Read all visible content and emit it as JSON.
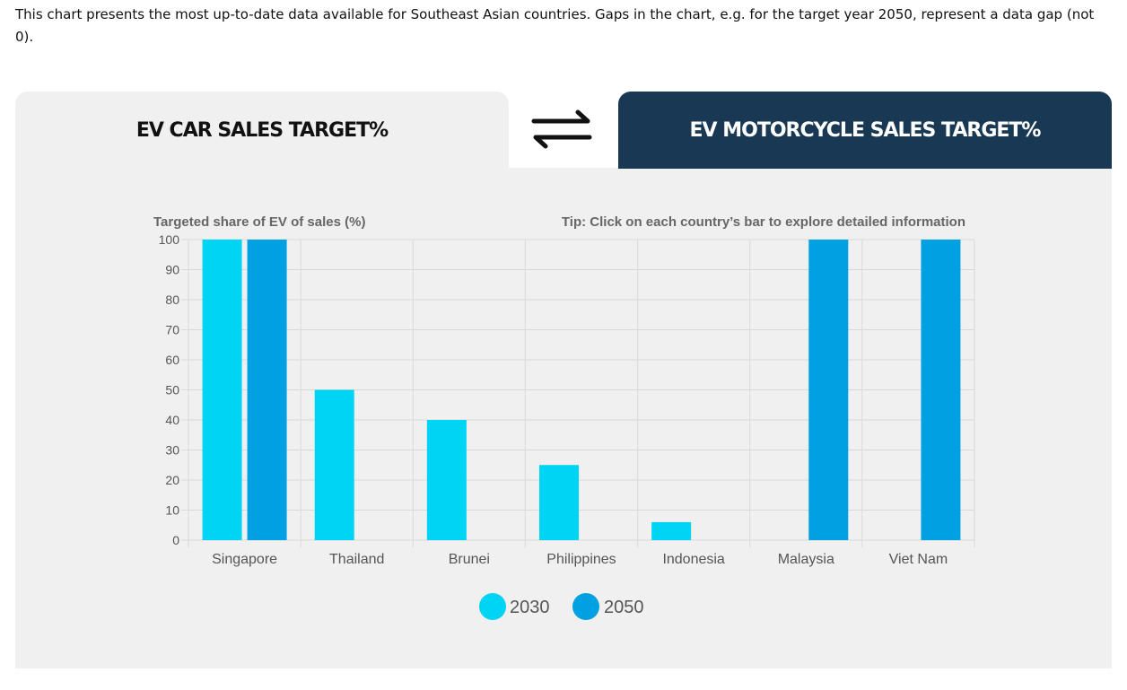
{
  "intro_text": "This chart presents the most up-to-date data available for Southeast Asian countries. Gaps in the chart, e.g. for the target year 2050, represent a data gap (not 0).",
  "tabs": {
    "car_label": "EV CAR SALES TARGET%",
    "motorcycle_label": "EV MOTORCYCLE SALES TARGET%",
    "swap_icon": "swap-arrows-icon"
  },
  "colors": {
    "series_2030": "#00d4f5",
    "series_2050": "#00a1e2",
    "active_tab": "#193853",
    "panel": "#f0f0f0"
  },
  "chart_data": {
    "type": "bar",
    "title": "",
    "ylabel": "Targeted share of EV of sales (%)",
    "tip": "Tip: Click on each country’s bar to explore detailed information",
    "ylim": [
      0,
      100
    ],
    "yticks": [
      0,
      10,
      20,
      30,
      40,
      50,
      60,
      70,
      80,
      90,
      100
    ],
    "grid": true,
    "legend_position": "bottom-center",
    "categories": [
      "Singapore",
      "Thailand",
      "Brunei",
      "Philippines",
      "Indonesia",
      "Malaysia",
      "Viet Nam"
    ],
    "series": [
      {
        "name": "2030",
        "color": "#00d4f5",
        "values": [
          100,
          50,
          40,
          25,
          6,
          null,
          null
        ]
      },
      {
        "name": "2050",
        "color": "#00a1e2",
        "values": [
          100,
          null,
          null,
          null,
          null,
          100,
          100
        ]
      }
    ]
  }
}
